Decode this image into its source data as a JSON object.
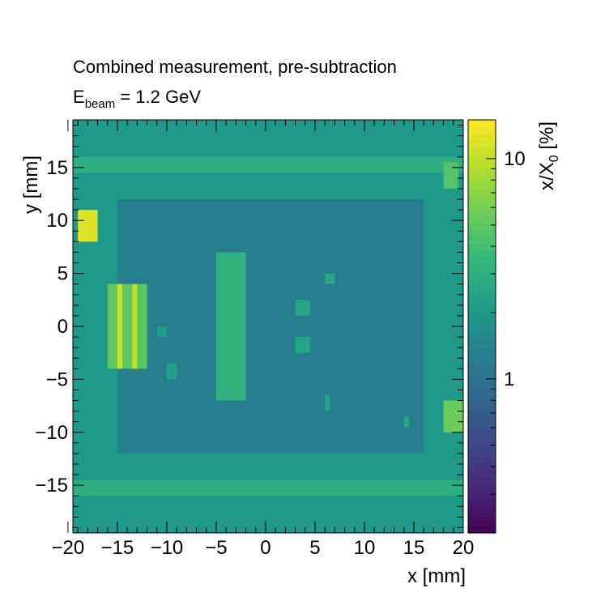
{
  "chart_data": {
    "type": "heatmap",
    "title": "Combined measurement, pre-subtraction",
    "subtitle_main": "E",
    "subtitle_sub": "beam",
    "subtitle_rest": " = 1.2 GeV",
    "xlabel": "x [mm]",
    "ylabel": "y [mm]",
    "zlabel_main": "x/X",
    "zlabel_sub": "0",
    "zlabel_rest": " [%]",
    "xlim": [
      -19.5,
      20
    ],
    "ylim": [
      -19.5,
      19.5
    ],
    "zlim": [
      0.2,
      15
    ],
    "z_log": true,
    "colormap": [
      "#440154",
      "#482878",
      "#3e4989",
      "#31688e",
      "#26828e",
      "#1f9e89",
      "#35b779",
      "#6ece58",
      "#b5de2b",
      "#fde725"
    ],
    "x_ticks": [
      -20,
      -15,
      -10,
      -5,
      0,
      5,
      10,
      15,
      20
    ],
    "x_tick_labels": [
      "−20",
      "−15",
      "−10",
      "−5",
      "0",
      "5",
      "10",
      "15",
      "20"
    ],
    "y_ticks": [
      15,
      10,
      5,
      0,
      -5,
      -10,
      -15
    ],
    "y_tick_labels": [
      "15",
      "10",
      "5",
      "0",
      "−5",
      "−10",
      "−15"
    ],
    "z_ticks": [
      1,
      10
    ],
    "z_tick_labels": [
      "1",
      "10"
    ],
    "grid": false,
    "background_value": 2.0,
    "regions": [
      {
        "x": [
          -19.5,
          20
        ],
        "y": [
          -19.5,
          19.5
        ],
        "z": 2.0
      },
      {
        "x": [
          -15,
          16
        ],
        "y": [
          -12,
          12
        ],
        "z": 1.3
      },
      {
        "x": [
          -19.5,
          20
        ],
        "y": [
          14.5,
          16
        ],
        "z": 3.0
      },
      {
        "x": [
          -19.5,
          20
        ],
        "y": [
          -16,
          -14.5
        ],
        "z": 3.0
      },
      {
        "x": [
          -16,
          -12
        ],
        "y": [
          -4,
          4
        ],
        "z": 5.0
      },
      {
        "x": [
          -15,
          -14.5
        ],
        "y": [
          -4,
          4
        ],
        "z": 11
      },
      {
        "x": [
          -13.5,
          -13
        ],
        "y": [
          -4,
          4
        ],
        "z": 10
      },
      {
        "x": [
          -5,
          -2
        ],
        "y": [
          -7,
          7
        ],
        "z": 3.2
      },
      {
        "x": [
          -19,
          -17
        ],
        "y": [
          8,
          11
        ],
        "z": 12
      },
      {
        "x": [
          18,
          20
        ],
        "y": [
          -10,
          -7
        ],
        "z": 5.5
      },
      {
        "x": [
          18,
          19.5
        ],
        "y": [
          13,
          15.5
        ],
        "z": 4.5
      },
      {
        "x": [
          3,
          4.5
        ],
        "y": [
          1,
          2.5
        ],
        "z": 2.5
      },
      {
        "x": [
          3,
          4.5
        ],
        "y": [
          -2.5,
          -1
        ],
        "z": 2.5
      },
      {
        "x": [
          6,
          7
        ],
        "y": [
          4,
          5
        ],
        "z": 2.6
      },
      {
        "x": [
          -10,
          -9
        ],
        "y": [
          -5,
          -3.5
        ],
        "z": 2.3
      },
      {
        "x": [
          -11,
          -10
        ],
        "y": [
          -1,
          0
        ],
        "z": 2.2
      },
      {
        "x": [
          6,
          6.5
        ],
        "y": [
          -8,
          -6.5
        ],
        "z": 2.5
      },
      {
        "x": [
          14,
          14.5
        ],
        "y": [
          -9.5,
          -8.5
        ],
        "z": 2.6
      }
    ]
  }
}
